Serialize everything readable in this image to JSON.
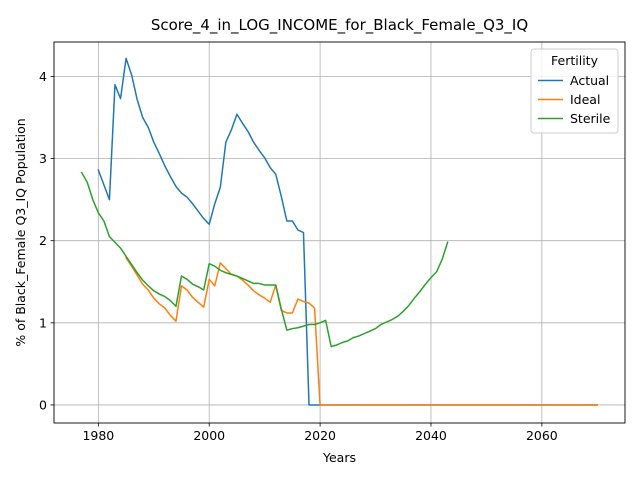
{
  "chart_data": {
    "type": "line",
    "title": "Score_4_in_LOG_INCOME_for_Black_Female_Q3_IQ",
    "xlabel": "Years",
    "ylabel": "% of Black_Female Q3_IQ Population",
    "xlim": [
      1972,
      2075
    ],
    "ylim": [
      -0.22,
      4.42
    ],
    "xticks": [
      1980,
      2000,
      2020,
      2040,
      2060
    ],
    "yticks": [
      0,
      1,
      2,
      3,
      4
    ],
    "grid": true,
    "legend": {
      "title": "Fertility",
      "placement": "top-right"
    },
    "series": [
      {
        "name": "Actual",
        "color": "#1f77b4",
        "points": [
          [
            1980,
            2.86
          ],
          [
            1982,
            2.5
          ],
          [
            1983,
            3.9
          ],
          [
            1984,
            3.73
          ],
          [
            1985,
            4.22
          ],
          [
            1986,
            4.02
          ],
          [
            1987,
            3.72
          ],
          [
            1988,
            3.5
          ],
          [
            1989,
            3.38
          ],
          [
            1990,
            3.2
          ],
          [
            1991,
            3.06
          ],
          [
            1992,
            2.91
          ],
          [
            1993,
            2.78
          ],
          [
            1994,
            2.66
          ],
          [
            1995,
            2.58
          ],
          [
            1996,
            2.53
          ],
          [
            1997,
            2.45
          ],
          [
            1998,
            2.36
          ],
          [
            1999,
            2.27
          ],
          [
            2000,
            2.2
          ],
          [
            2001,
            2.45
          ],
          [
            2002,
            2.65
          ],
          [
            2003,
            3.2
          ],
          [
            2004,
            3.35
          ],
          [
            2005,
            3.54
          ],
          [
            2006,
            3.43
          ],
          [
            2007,
            3.33
          ],
          [
            2008,
            3.2
          ],
          [
            2009,
            3.1
          ],
          [
            2010,
            3.01
          ],
          [
            2011,
            2.89
          ],
          [
            2012,
            2.81
          ],
          [
            2013,
            2.54
          ],
          [
            2014,
            2.24
          ],
          [
            2015,
            2.24
          ],
          [
            2016,
            2.13
          ],
          [
            2017,
            2.1
          ],
          [
            2018,
            0.0
          ],
          [
            2019,
            0.0
          ],
          [
            2020,
            0.0
          ],
          [
            2030,
            0.0
          ],
          [
            2040,
            0.0
          ],
          [
            2050,
            0.0
          ],
          [
            2060,
            0.0
          ],
          [
            2070,
            0.0
          ]
        ]
      },
      {
        "name": "Ideal",
        "color": "#ff7f0e",
        "points": [
          [
            1985,
            1.79
          ],
          [
            1986,
            1.69
          ],
          [
            1987,
            1.58
          ],
          [
            1988,
            1.47
          ],
          [
            1989,
            1.4
          ],
          [
            1990,
            1.3
          ],
          [
            1991,
            1.23
          ],
          [
            1992,
            1.18
          ],
          [
            1993,
            1.09
          ],
          [
            1994,
            1.02
          ],
          [
            1995,
            1.45
          ],
          [
            1996,
            1.4
          ],
          [
            1997,
            1.31
          ],
          [
            1998,
            1.25
          ],
          [
            1999,
            1.19
          ],
          [
            2000,
            1.53
          ],
          [
            2001,
            1.45
          ],
          [
            2002,
            1.73
          ],
          [
            2003,
            1.66
          ],
          [
            2004,
            1.59
          ],
          [
            2005,
            1.57
          ],
          [
            2006,
            1.52
          ],
          [
            2007,
            1.46
          ],
          [
            2008,
            1.39
          ],
          [
            2009,
            1.34
          ],
          [
            2010,
            1.3
          ],
          [
            2011,
            1.25
          ],
          [
            2012,
            1.46
          ],
          [
            2013,
            1.15
          ],
          [
            2014,
            1.12
          ],
          [
            2015,
            1.12
          ],
          [
            2016,
            1.29
          ],
          [
            2017,
            1.26
          ],
          [
            2018,
            1.24
          ],
          [
            2019,
            1.18
          ],
          [
            2020,
            0.0
          ],
          [
            2030,
            0.0
          ],
          [
            2040,
            0.0
          ],
          [
            2050,
            0.0
          ],
          [
            2060,
            0.0
          ],
          [
            2070,
            0.0
          ]
        ]
      },
      {
        "name": "Sterile",
        "color": "#2ca02c",
        "points": [
          [
            1977,
            2.83
          ],
          [
            1978,
            2.71
          ],
          [
            1979,
            2.5
          ],
          [
            1980,
            2.34
          ],
          [
            1981,
            2.24
          ],
          [
            1982,
            2.05
          ],
          [
            1983,
            1.98
          ],
          [
            1984,
            1.91
          ],
          [
            1985,
            1.81
          ],
          [
            1986,
            1.71
          ],
          [
            1987,
            1.61
          ],
          [
            1988,
            1.52
          ],
          [
            1989,
            1.45
          ],
          [
            1990,
            1.39
          ],
          [
            1991,
            1.35
          ],
          [
            1992,
            1.32
          ],
          [
            1993,
            1.27
          ],
          [
            1994,
            1.2
          ],
          [
            1995,
            1.57
          ],
          [
            1996,
            1.53
          ],
          [
            1997,
            1.47
          ],
          [
            1998,
            1.44
          ],
          [
            1999,
            1.4
          ],
          [
            2000,
            1.72
          ],
          [
            2001,
            1.69
          ],
          [
            2002,
            1.64
          ],
          [
            2003,
            1.61
          ],
          [
            2004,
            1.59
          ],
          [
            2005,
            1.57
          ],
          [
            2006,
            1.54
          ],
          [
            2007,
            1.51
          ],
          [
            2008,
            1.48
          ],
          [
            2009,
            1.48
          ],
          [
            2010,
            1.46
          ],
          [
            2011,
            1.46
          ],
          [
            2012,
            1.46
          ],
          [
            2013,
            1.17
          ],
          [
            2014,
            0.91
          ],
          [
            2015,
            0.93
          ],
          [
            2016,
            0.94
          ],
          [
            2017,
            0.96
          ],
          [
            2018,
            0.98
          ],
          [
            2019,
            0.98
          ],
          [
            2020,
            1.0
          ],
          [
            2021,
            1.03
          ],
          [
            2022,
            0.71
          ],
          [
            2023,
            0.73
          ],
          [
            2024,
            0.76
          ],
          [
            2025,
            0.78
          ],
          [
            2026,
            0.82
          ],
          [
            2027,
            0.84
          ],
          [
            2028,
            0.87
          ],
          [
            2029,
            0.9
          ],
          [
            2030,
            0.93
          ],
          [
            2031,
            0.98
          ],
          [
            2032,
            1.01
          ],
          [
            2033,
            1.04
          ],
          [
            2034,
            1.08
          ],
          [
            2035,
            1.14
          ],
          [
            2036,
            1.21
          ],
          [
            2037,
            1.3
          ],
          [
            2038,
            1.38
          ],
          [
            2039,
            1.47
          ],
          [
            2040,
            1.55
          ],
          [
            2041,
            1.62
          ],
          [
            2042,
            1.77
          ],
          [
            2043,
            1.98
          ]
        ]
      }
    ]
  }
}
